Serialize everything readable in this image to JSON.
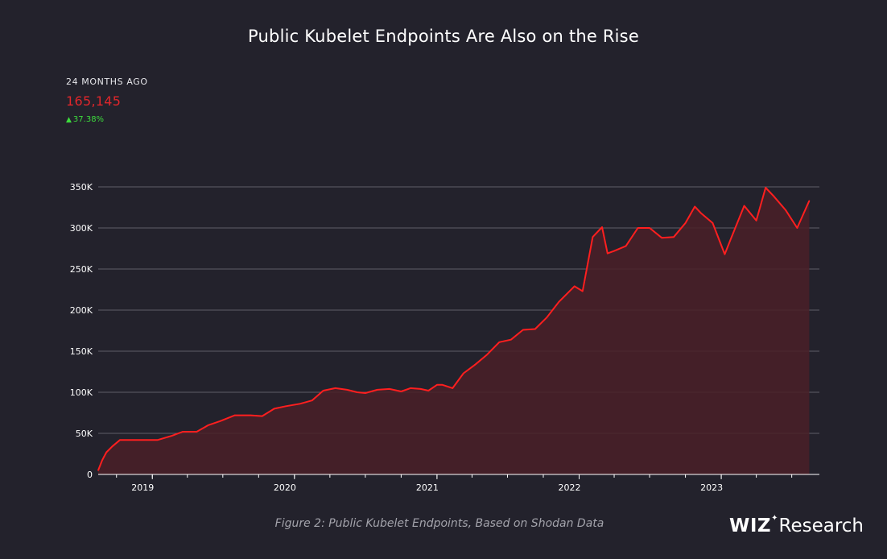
{
  "title": "Public Kubelet Endpoints Are Also on the Rise",
  "stats": {
    "label": "24 MONTHS AGO",
    "value": "165,145",
    "change": "37.38%",
    "colors": {
      "value": "#e0262b",
      "change": "#3ddc3d"
    }
  },
  "caption": "Figure 2: Public Kubelet Endpoints, Based on Shodan Data",
  "logo": {
    "wiz": "WIZ",
    "research": "Research"
  },
  "chart_data": {
    "type": "area",
    "title": "Public Kubelet Endpoints Are Also on the Rise",
    "xlabel": "",
    "ylabel": "",
    "ylim": [
      0,
      350000
    ],
    "xlim": [
      "2018-08-15",
      "2023-09-10"
    ],
    "y_ticks": [
      0,
      50000,
      100000,
      150000,
      200000,
      250000,
      300000,
      350000
    ],
    "y_tick_labels": [
      "0",
      "50K",
      "100K",
      "150K",
      "200K",
      "250K",
      "300K",
      "350K"
    ],
    "x_tick_labels": [
      {
        "label": "2019",
        "date": "2019-01-01"
      },
      {
        "label": "2020",
        "date": "2020-01-01"
      },
      {
        "label": "2021",
        "date": "2021-01-01"
      },
      {
        "label": "2022",
        "date": "2022-01-01"
      },
      {
        "label": "2023",
        "date": "2023-01-01"
      }
    ],
    "grid": true,
    "line_color": "#ff1f1f",
    "fill_color": "#4a1f28",
    "series": [
      {
        "x": [
          "2018-08-15",
          "2018-08-25",
          "2018-09-05",
          "2018-09-20",
          "2018-10-10",
          "2018-10-25",
          "2018-11-10",
          "2018-12-15",
          "2019-01-15",
          "2019-02-20",
          "2019-03-20",
          "2019-04-25",
          "2019-05-25",
          "2019-06-25",
          "2019-08-01",
          "2019-09-10",
          "2019-10-10",
          "2019-11-10",
          "2019-12-10",
          "2020-01-15",
          "2020-02-15",
          "2020-03-15",
          "2020-04-15",
          "2020-05-15",
          "2020-06-10",
          "2020-07-01",
          "2020-08-01",
          "2020-09-01",
          "2020-10-01",
          "2020-10-25",
          "2020-11-20",
          "2020-12-10",
          "2021-01-01",
          "2021-01-15",
          "2021-02-10",
          "2021-03-10",
          "2021-04-10",
          "2021-05-10",
          "2021-06-10",
          "2021-07-10",
          "2021-08-10",
          "2021-09-10",
          "2021-10-10",
          "2021-11-10",
          "2021-12-20",
          "2022-01-10",
          "2022-02-05",
          "2022-03-01",
          "2022-03-15",
          "2022-04-01",
          "2022-05-01",
          "2022-06-01",
          "2022-07-01",
          "2022-08-01",
          "2022-09-01",
          "2022-10-01",
          "2022-10-25",
          "2022-11-10",
          "2022-12-10",
          "2023-01-10",
          "2023-01-25",
          "2023-03-01",
          "2023-04-01",
          "2023-04-25",
          "2023-05-15",
          "2023-06-15",
          "2023-07-15",
          "2023-08-15"
        ],
        "values": [
          5000,
          17000,
          27000,
          34000,
          42000,
          42000,
          42000,
          42000,
          42000,
          47000,
          52000,
          52000,
          60000,
          65000,
          72000,
          72000,
          71000,
          80000,
          83000,
          86000,
          90000,
          102000,
          105000,
          103000,
          100000,
          99000,
          103000,
          104000,
          101000,
          105000,
          104000,
          102000,
          109000,
          109000,
          105000,
          123000,
          134000,
          146000,
          161000,
          164000,
          176000,
          177000,
          191000,
          210000,
          229000,
          223000,
          289000,
          301000,
          269000,
          272000,
          278000,
          300000,
          300000,
          288000,
          289000,
          306000,
          326000,
          318000,
          306000,
          268000,
          286000,
          327000,
          309000,
          349000,
          339000,
          322000,
          300000,
          333000
        ]
      }
    ]
  }
}
